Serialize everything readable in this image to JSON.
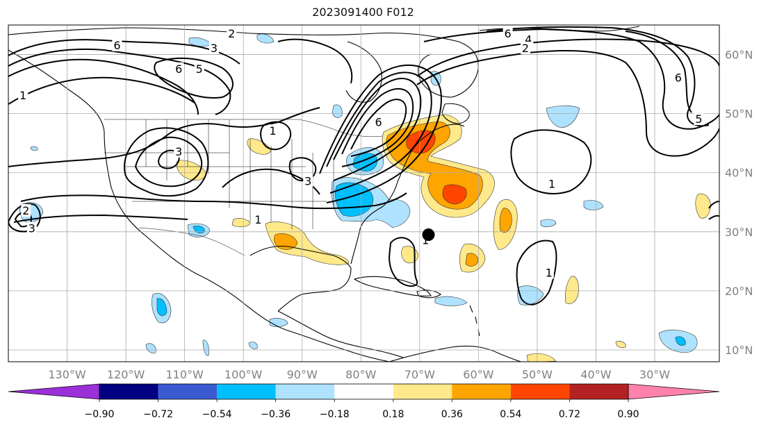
{
  "map": {
    "title": "2023091400 F012",
    "lon_ticks": [
      {
        "label": "130°W",
        "lon": -130
      },
      {
        "label": "120°W",
        "lon": -120
      },
      {
        "label": "110°W",
        "lon": -110
      },
      {
        "label": "100°W",
        "lon": -100
      },
      {
        "label": "90°W",
        "lon": -90
      },
      {
        "label": "80°W",
        "lon": -80
      },
      {
        "label": "70°W",
        "lon": -70
      },
      {
        "label": "60°W",
        "lon": -60
      },
      {
        "label": "50°W",
        "lon": -50
      },
      {
        "label": "40°W",
        "lon": -40
      },
      {
        "label": "30°W",
        "lon": -30
      }
    ],
    "lat_ticks": [
      {
        "label": "60°N",
        "lat": 60
      },
      {
        "label": "50°N",
        "lat": 50
      },
      {
        "label": "40°N",
        "lat": 40
      },
      {
        "label": "30°N",
        "lat": 30
      },
      {
        "label": "20°N",
        "lat": 20
      },
      {
        "label": "10°N",
        "lat": 10
      }
    ],
    "lon_range": [
      -140,
      -19
    ],
    "lat_range": [
      8,
      65
    ],
    "grid": true,
    "marker": {
      "name": "storm-center",
      "lon": -68.5,
      "lat": 29.5
    },
    "contour_labels": [
      {
        "text": "1",
        "lon": -137.5,
        "lat": 53
      },
      {
        "text": "2",
        "lon": -137,
        "lat": 33.5
      },
      {
        "text": "3",
        "lon": -136,
        "lat": 30.5
      },
      {
        "text": "6",
        "lon": -121.5,
        "lat": 61.5
      },
      {
        "text": "3",
        "lon": -105,
        "lat": 61
      },
      {
        "text": "2",
        "lon": -102,
        "lat": 63.5
      },
      {
        "text": "6",
        "lon": -111,
        "lat": 57.5
      },
      {
        "text": "5",
        "lon": -107.5,
        "lat": 57.5
      },
      {
        "text": "3",
        "lon": -111,
        "lat": 43.5
      },
      {
        "text": "1",
        "lon": -95,
        "lat": 47
      },
      {
        "text": "3",
        "lon": -89,
        "lat": 38.5
      },
      {
        "text": "1",
        "lon": -97.5,
        "lat": 32
      },
      {
        "text": "6",
        "lon": -77,
        "lat": 48.5
      },
      {
        "text": "6",
        "lon": -55,
        "lat": 63.5
      },
      {
        "text": "4",
        "lon": -51.5,
        "lat": 62.5
      },
      {
        "text": "2",
        "lon": -52,
        "lat": 61
      },
      {
        "text": "1",
        "lon": -47.5,
        "lat": 38
      },
      {
        "text": "6",
        "lon": -26,
        "lat": 56
      },
      {
        "text": "5",
        "lon": -22.5,
        "lat": 49
      },
      {
        "text": "1",
        "lon": -69,
        "lat": 28.5
      },
      {
        "text": "1",
        "lon": -48,
        "lat": 23
      }
    ]
  },
  "colorbar": {
    "tick_labels": [
      "−0.90",
      "−0.72",
      "−0.54",
      "−0.36",
      "−0.18",
      "0.18",
      "0.36",
      "0.54",
      "0.72",
      "0.90"
    ],
    "colors": {
      "under": "#9b30d9",
      "bins": [
        "#000080",
        "#3a5bd0",
        "#00bfff",
        "#aee2ff",
        "#ffffff",
        "#ffe98a",
        "#ffa500",
        "#ff4500",
        "#b22222"
      ],
      "over": "#ff82ab"
    }
  }
}
